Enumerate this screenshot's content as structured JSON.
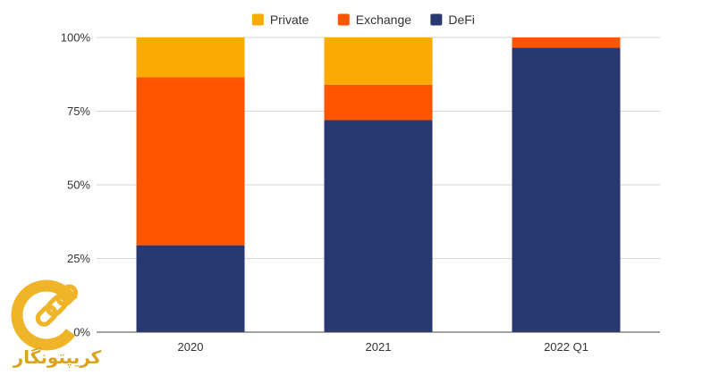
{
  "chart_data": {
    "type": "bar",
    "stacked": true,
    "percent": true,
    "categories": [
      "2020",
      "2021",
      "2022 Q1"
    ],
    "series": [
      {
        "name": "DeFi",
        "color": "#283870",
        "values": [
          29.5,
          72,
          96.5
        ]
      },
      {
        "name": "Exchange",
        "color": "#ff5500",
        "values": [
          57,
          12,
          3.5
        ]
      },
      {
        "name": "Private",
        "color": "#faaa00",
        "values": [
          13.5,
          16,
          0
        ]
      }
    ],
    "legend_order": [
      "Private",
      "Exchange",
      "DeFi"
    ],
    "legend_position": "top-center",
    "ylim": [
      0,
      100
    ],
    "yticks": [
      "0%",
      "25%",
      "50%",
      "75%",
      "100%"
    ],
    "ytick_values": [
      0,
      25,
      50,
      75,
      100
    ],
    "grid": true,
    "xlabel": "",
    "ylabel": "",
    "title": ""
  },
  "watermark": {
    "text": "کریپتونگار",
    "accent_color": "#f0b429"
  }
}
